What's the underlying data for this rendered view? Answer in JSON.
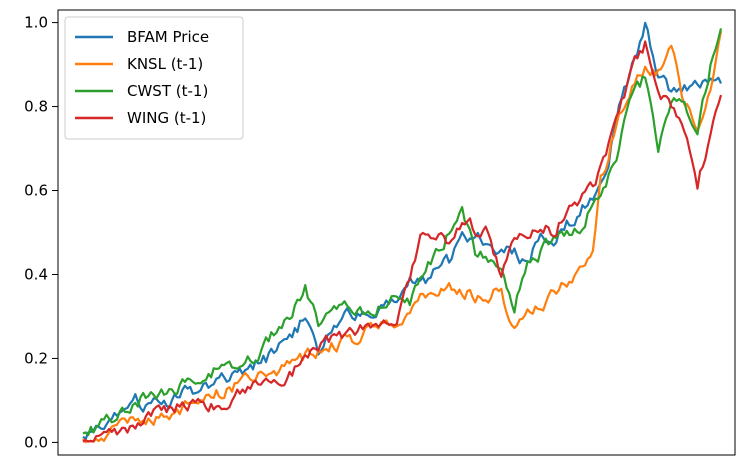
{
  "chart_data": {
    "type": "line",
    "title": "",
    "xlabel": "",
    "ylabel": "",
    "x_count": 245,
    "ylim": [
      -0.03,
      1.03
    ],
    "yticks": [
      "0.0",
      "0.2",
      "0.4",
      "0.6",
      "0.8",
      "1.0"
    ],
    "ytick_values": [
      0.0,
      0.2,
      0.4,
      0.6,
      0.8,
      1.0
    ],
    "grid": false,
    "legend_position": "top-left",
    "series": [
      {
        "name": "BFAM Price",
        "color": "#1f77b4",
        "keypoints": [
          [
            0,
            0.01
          ],
          [
            10,
            0.04
          ],
          [
            20,
            0.12
          ],
          [
            25,
            0.08
          ],
          [
            40,
            0.12
          ],
          [
            55,
            0.15
          ],
          [
            70,
            0.2
          ],
          [
            80,
            0.25
          ],
          [
            85,
            0.3
          ],
          [
            90,
            0.22
          ],
          [
            100,
            0.3
          ],
          [
            110,
            0.32
          ],
          [
            120,
            0.35
          ],
          [
            125,
            0.4
          ],
          [
            130,
            0.38
          ],
          [
            140,
            0.43
          ],
          [
            145,
            0.5
          ],
          [
            155,
            0.48
          ],
          [
            165,
            0.45
          ],
          [
            170,
            0.42
          ],
          [
            175,
            0.5
          ],
          [
            180,
            0.47
          ],
          [
            185,
            0.52
          ],
          [
            190,
            0.55
          ],
          [
            200,
            0.63
          ],
          [
            205,
            0.8
          ],
          [
            210,
            0.9
          ],
          [
            215,
            1.0
          ],
          [
            220,
            0.88
          ],
          [
            225,
            0.84
          ],
          [
            230,
            0.85
          ],
          [
            235,
            0.86
          ],
          [
            240,
            0.85
          ],
          [
            244,
            0.85
          ]
        ]
      },
      {
        "name": "KNSL (t-1)",
        "color": "#ff7f0e",
        "keypoints": [
          [
            0,
            0.0
          ],
          [
            15,
            0.04
          ],
          [
            30,
            0.06
          ],
          [
            45,
            0.1
          ],
          [
            60,
            0.14
          ],
          [
            75,
            0.17
          ],
          [
            90,
            0.22
          ],
          [
            105,
            0.25
          ],
          [
            115,
            0.28
          ],
          [
            125,
            0.3
          ],
          [
            130,
            0.35
          ],
          [
            140,
            0.38
          ],
          [
            150,
            0.35
          ],
          [
            160,
            0.36
          ],
          [
            165,
            0.26
          ],
          [
            170,
            0.32
          ],
          [
            180,
            0.35
          ],
          [
            185,
            0.38
          ],
          [
            190,
            0.42
          ],
          [
            195,
            0.44
          ],
          [
            198,
            0.62
          ],
          [
            205,
            0.78
          ],
          [
            210,
            0.85
          ],
          [
            215,
            0.9
          ],
          [
            220,
            0.88
          ],
          [
            225,
            0.95
          ],
          [
            230,
            0.8
          ],
          [
            235,
            0.75
          ],
          [
            240,
            0.85
          ],
          [
            244,
            0.97
          ]
        ]
      },
      {
        "name": "CWST (t-1)",
        "color": "#2ca02c",
        "keypoints": [
          [
            0,
            0.02
          ],
          [
            10,
            0.05
          ],
          [
            20,
            0.1
          ],
          [
            35,
            0.13
          ],
          [
            50,
            0.17
          ],
          [
            65,
            0.2
          ],
          [
            75,
            0.28
          ],
          [
            80,
            0.3
          ],
          [
            85,
            0.38
          ],
          [
            90,
            0.28
          ],
          [
            100,
            0.32
          ],
          [
            110,
            0.3
          ],
          [
            120,
            0.35
          ],
          [
            125,
            0.33
          ],
          [
            130,
            0.4
          ],
          [
            140,
            0.5
          ],
          [
            145,
            0.55
          ],
          [
            150,
            0.45
          ],
          [
            160,
            0.42
          ],
          [
            165,
            0.33
          ],
          [
            170,
            0.42
          ],
          [
            180,
            0.48
          ],
          [
            190,
            0.52
          ],
          [
            195,
            0.57
          ],
          [
            200,
            0.63
          ],
          [
            205,
            0.7
          ],
          [
            210,
            0.82
          ],
          [
            215,
            0.87
          ],
          [
            220,
            0.7
          ],
          [
            225,
            0.82
          ],
          [
            230,
            0.8
          ],
          [
            235,
            0.75
          ],
          [
            240,
            0.9
          ],
          [
            244,
            1.0
          ]
        ]
      },
      {
        "name": "WING (t-1)",
        "color": "#d62728",
        "keypoints": [
          [
            0,
            0.0
          ],
          [
            15,
            0.03
          ],
          [
            30,
            0.07
          ],
          [
            45,
            0.1
          ],
          [
            55,
            0.08
          ],
          [
            65,
            0.15
          ],
          [
            75,
            0.14
          ],
          [
            85,
            0.2
          ],
          [
            95,
            0.25
          ],
          [
            110,
            0.28
          ],
          [
            120,
            0.3
          ],
          [
            125,
            0.4
          ],
          [
            130,
            0.5
          ],
          [
            140,
            0.48
          ],
          [
            145,
            0.52
          ],
          [
            155,
            0.5
          ],
          [
            160,
            0.4
          ],
          [
            165,
            0.5
          ],
          [
            170,
            0.48
          ],
          [
            175,
            0.52
          ],
          [
            180,
            0.5
          ],
          [
            185,
            0.55
          ],
          [
            195,
            0.6
          ],
          [
            205,
            0.78
          ],
          [
            210,
            0.9
          ],
          [
            215,
            0.95
          ],
          [
            220,
            0.82
          ],
          [
            225,
            0.8
          ],
          [
            230,
            0.75
          ],
          [
            235,
            0.6
          ],
          [
            240,
            0.75
          ],
          [
            244,
            0.82
          ]
        ]
      }
    ]
  }
}
